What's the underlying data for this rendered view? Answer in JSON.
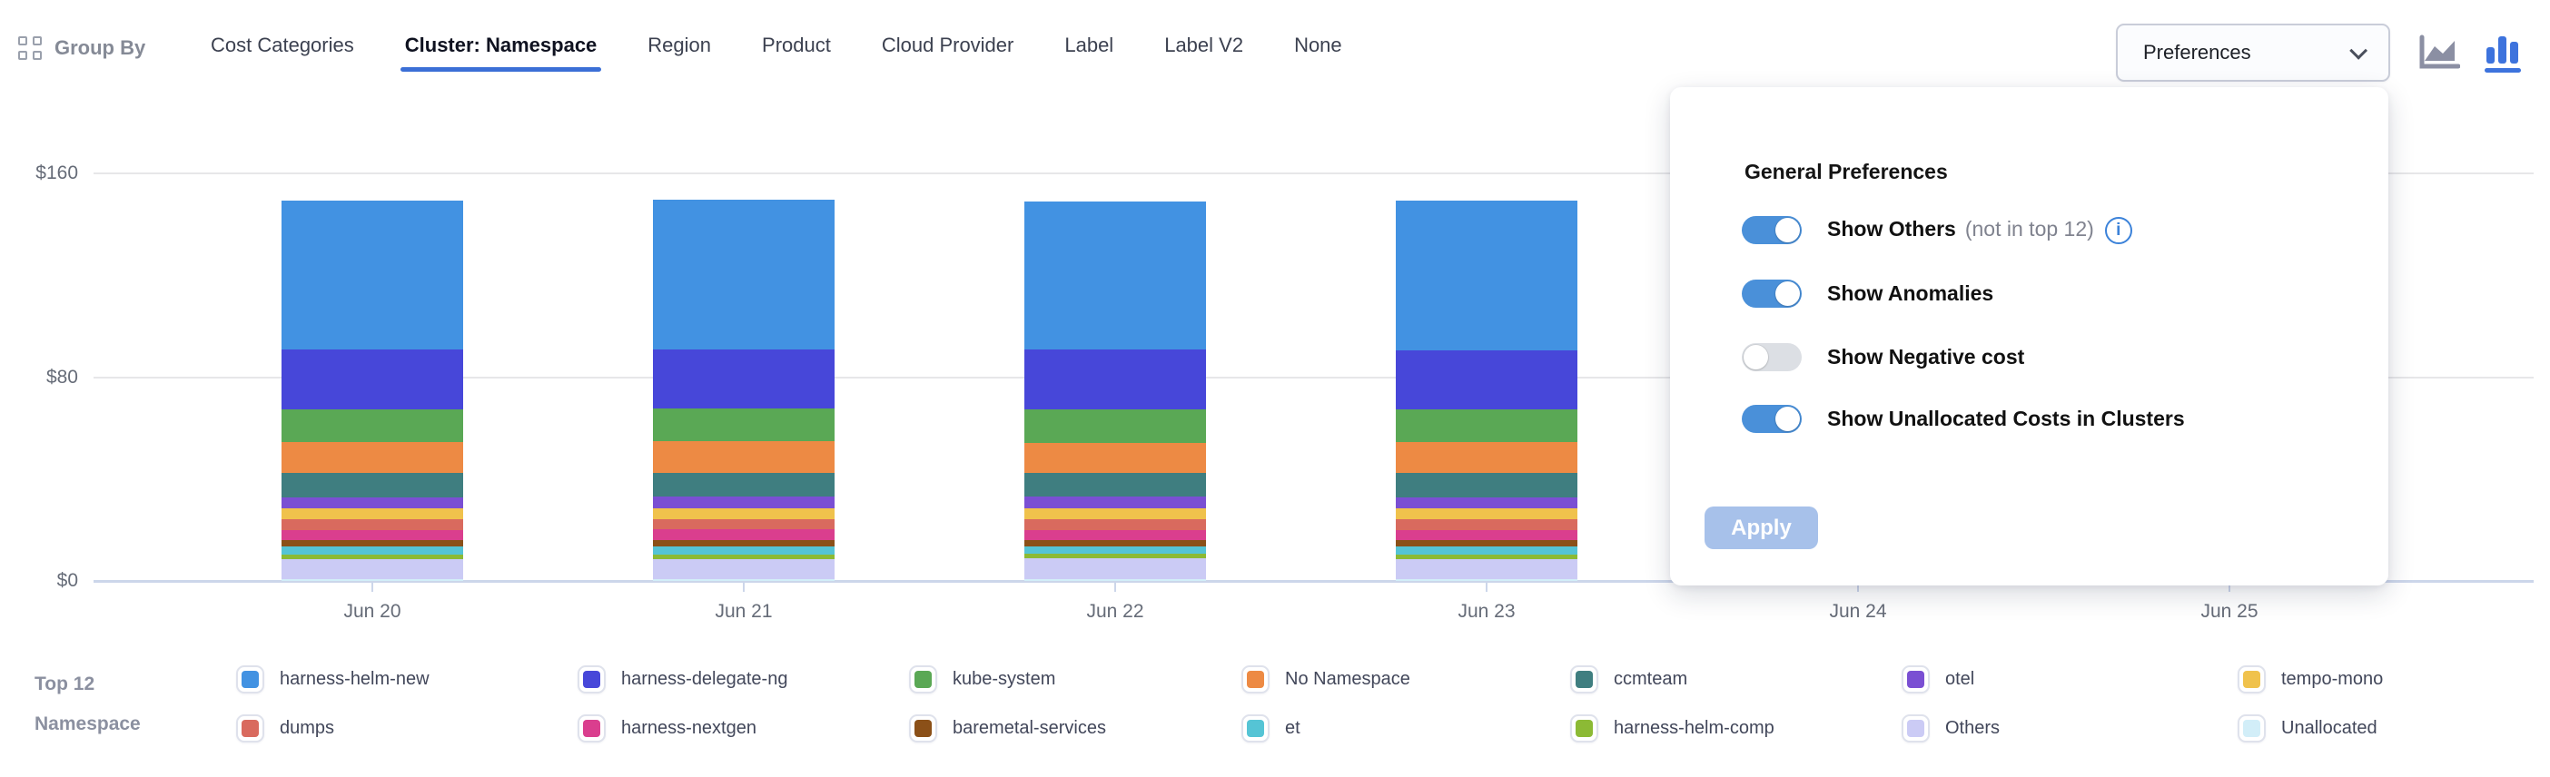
{
  "header": {
    "group_by_label": "Group By",
    "tabs": [
      {
        "label": "Cost Categories",
        "active": false
      },
      {
        "label": "Cluster: Namespace",
        "active": true
      },
      {
        "label": "Region",
        "active": false
      },
      {
        "label": "Product",
        "active": false
      },
      {
        "label": "Cloud Provider",
        "active": false
      },
      {
        "label": "Label",
        "active": false
      },
      {
        "label": "Label V2",
        "active": false
      },
      {
        "label": "None",
        "active": false
      }
    ],
    "preferences_button_label": "Preferences",
    "chart_type_toggle": {
      "options": [
        "area-chart",
        "bar-chart"
      ],
      "active": "bar-chart",
      "active_color": "#3d73dd",
      "inactive_color": "#8b8fa3"
    }
  },
  "preferences_popup": {
    "title": "General Preferences",
    "toggles": [
      {
        "label": "Show Others",
        "suffix": "(not in top 12)",
        "has_info_icon": true,
        "on": true
      },
      {
        "label": "Show Anomalies",
        "suffix": "",
        "has_info_icon": false,
        "on": true
      },
      {
        "label": "Show Negative cost",
        "suffix": "",
        "has_info_icon": false,
        "on": false
      },
      {
        "label": "Show Unallocated Costs in Clusters",
        "suffix": "",
        "has_info_icon": false,
        "on": true
      }
    ],
    "apply_label": "Apply",
    "apply_enabled": false
  },
  "chart_data": {
    "type": "bar",
    "stacked": true,
    "currency_prefix": "$",
    "categories": [
      "Jun 20",
      "Jun 21",
      "Jun 22",
      "Jun 23",
      "Jun 24",
      "Jun 25"
    ],
    "bars_visible_for_first_n_categories": 4,
    "y_ticks": [
      "$0",
      "$80",
      "$160"
    ],
    "ylim": [
      0,
      160
    ],
    "grid": true,
    "legend_position": "bottom",
    "series": [
      {
        "name": "harness-helm-new",
        "color": "#4292e2",
        "values": [
          58.5,
          58.8,
          58.2,
          58.6
        ]
      },
      {
        "name": "harness-delegate-ng",
        "color": "#4747d9",
        "values": [
          23.4,
          23.2,
          23.5,
          23.3
        ]
      },
      {
        "name": "kube-system",
        "color": "#5aa855",
        "values": [
          13.0,
          12.8,
          13.1,
          12.9
        ]
      },
      {
        "name": "No Namespace",
        "color": "#ed8a44",
        "values": [
          12.2,
          12.3,
          12.1,
          12.2
        ]
      },
      {
        "name": "ccmteam",
        "color": "#3f7e80",
        "values": [
          9.3,
          9.4,
          9.2,
          9.3
        ]
      },
      {
        "name": "otel",
        "color": "#7a4fd3",
        "values": [
          4.5,
          4.5,
          4.6,
          4.5
        ]
      },
      {
        "name": "tempo-mono",
        "color": "#f0c24c",
        "values": [
          4.4,
          4.4,
          4.3,
          4.4
        ]
      },
      {
        "name": "dumps",
        "color": "#d96a5e",
        "values": [
          4.2,
          4.1,
          4.2,
          4.2
        ]
      },
      {
        "name": "harness-nextgen",
        "color": "#da3e8e",
        "values": [
          3.9,
          4.0,
          3.9,
          3.9
        ]
      },
      {
        "name": "baremetal-services",
        "color": "#8b5018",
        "values": [
          2.5,
          2.6,
          2.5,
          2.5
        ]
      },
      {
        "name": "et",
        "color": "#55c4d5",
        "values": [
          3.0,
          3.1,
          3.0,
          3.0
        ]
      },
      {
        "name": "harness-helm-comp",
        "color": "#8cba35",
        "values": [
          1.8,
          1.9,
          1.8,
          1.8
        ]
      },
      {
        "name": "Others",
        "color": "#cbcbf5",
        "values": [
          8.1,
          8.0,
          8.2,
          8.1
        ]
      },
      {
        "name": "Unallocated",
        "color": "#d2eef8",
        "values": [
          0.6,
          0.6,
          0.6,
          0.6
        ]
      }
    ]
  },
  "legend": {
    "title_line1": "Top 12",
    "title_line2": "Namespace",
    "rows": 2,
    "items_per_row": 7
  }
}
